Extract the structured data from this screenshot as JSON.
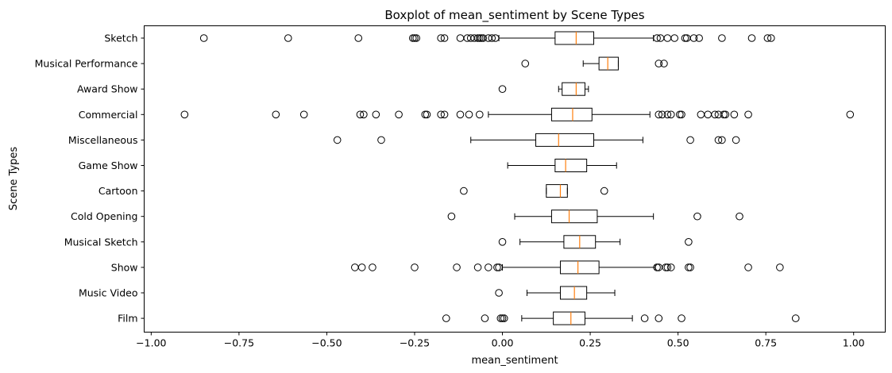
{
  "chart_data": {
    "type": "boxplot",
    "orientation": "horizontal",
    "title": "Boxplot of mean_sentiment by Scene Types",
    "xlabel": "mean_sentiment",
    "ylabel": "Scene Types",
    "xlim": [
      -1.02,
      1.09
    ],
    "xticks": [
      -1.0,
      -0.75,
      -0.5,
      -0.25,
      0.0,
      0.25,
      0.5,
      0.75,
      1.0
    ],
    "xtick_labels": [
      "−1.00",
      "−0.75",
      "−0.50",
      "−0.25",
      "0.00",
      "0.25",
      "0.50",
      "0.75",
      "1.00"
    ],
    "grid": false,
    "legend": "none",
    "colors": {
      "box": "#000000",
      "median": "#ff7f0e",
      "outlier": "#000000"
    },
    "categories": [
      "Sketch",
      "Musical Performance",
      "Award Show",
      "Commercial",
      "Miscellaneous",
      "Game Show",
      "Cartoon",
      "Cold Opening",
      "Musical Sketch",
      "Show",
      "Music Video",
      "Film"
    ],
    "boxes": [
      {
        "label": "Sketch",
        "whislo": -0.01,
        "q1": 0.15,
        "med": 0.21,
        "q3": 0.26,
        "whishi": 0.43,
        "fliers": [
          -0.85,
          -0.61,
          -0.41,
          -0.255,
          -0.25,
          -0.245,
          -0.175,
          -0.165,
          -0.12,
          -0.1,
          -0.09,
          -0.08,
          -0.07,
          -0.065,
          -0.06,
          -0.055,
          -0.04,
          -0.03,
          -0.02,
          0.44,
          0.45,
          0.47,
          0.49,
          0.52,
          0.525,
          0.545,
          0.56,
          0.625,
          0.71,
          0.755,
          0.765
        ]
      },
      {
        "label": "Musical Performance",
        "whislo": 0.23,
        "q1": 0.275,
        "med": 0.3,
        "q3": 0.33,
        "whishi": 0.33,
        "fliers": [
          0.065,
          0.445,
          0.46
        ]
      },
      {
        "label": "Award Show",
        "whislo": 0.16,
        "q1": 0.17,
        "med": 0.21,
        "q3": 0.235,
        "whishi": 0.245,
        "fliers": [
          0.0
        ]
      },
      {
        "label": "Commercial",
        "whislo": -0.04,
        "q1": 0.14,
        "med": 0.2,
        "q3": 0.255,
        "whishi": 0.42,
        "fliers": [
          -0.905,
          -0.645,
          -0.565,
          -0.405,
          -0.395,
          -0.36,
          -0.295,
          -0.22,
          -0.215,
          -0.175,
          -0.165,
          -0.12,
          -0.095,
          -0.065,
          0.445,
          0.455,
          0.47,
          0.48,
          0.505,
          0.51,
          0.565,
          0.585,
          0.605,
          0.615,
          0.63,
          0.635,
          0.66,
          0.7,
          0.99
        ]
      },
      {
        "label": "Miscellaneous",
        "whislo": -0.09,
        "q1": 0.095,
        "med": 0.16,
        "q3": 0.26,
        "whishi": 0.4,
        "fliers": [
          -0.47,
          -0.345,
          0.535,
          0.615,
          0.625,
          0.665
        ]
      },
      {
        "label": "Game Show",
        "whislo": 0.015,
        "q1": 0.15,
        "med": 0.18,
        "q3": 0.24,
        "whishi": 0.325,
        "fliers": []
      },
      {
        "label": "Cartoon",
        "whislo": 0.125,
        "q1": 0.125,
        "med": 0.165,
        "q3": 0.185,
        "whishi": 0.185,
        "fliers": [
          -0.11,
          0.29
        ]
      },
      {
        "label": "Cold Opening",
        "whislo": 0.035,
        "q1": 0.14,
        "med": 0.19,
        "q3": 0.27,
        "whishi": 0.43,
        "fliers": [
          -0.145,
          0.555,
          0.675
        ]
      },
      {
        "label": "Musical Sketch",
        "whislo": 0.05,
        "q1": 0.175,
        "med": 0.22,
        "q3": 0.265,
        "whishi": 0.335,
        "fliers": [
          0.0,
          0.53
        ]
      },
      {
        "label": "Show",
        "whislo": 0.0,
        "q1": 0.165,
        "med": 0.215,
        "q3": 0.275,
        "whishi": 0.435,
        "fliers": [
          -0.42,
          -0.4,
          -0.37,
          -0.25,
          -0.13,
          -0.07,
          -0.04,
          -0.015,
          -0.01,
          0.44,
          0.445,
          0.465,
          0.47,
          0.48,
          0.53,
          0.535,
          0.7,
          0.79
        ]
      },
      {
        "label": "Music Video",
        "whislo": 0.07,
        "q1": 0.165,
        "med": 0.205,
        "q3": 0.24,
        "whishi": 0.32,
        "fliers": [
          -0.01
        ]
      },
      {
        "label": "Film",
        "whislo": 0.055,
        "q1": 0.145,
        "med": 0.195,
        "q3": 0.235,
        "whishi": 0.37,
        "fliers": [
          -0.16,
          -0.05,
          -0.005,
          0.0,
          0.005,
          0.405,
          0.445,
          0.51,
          0.835
        ]
      }
    ]
  }
}
